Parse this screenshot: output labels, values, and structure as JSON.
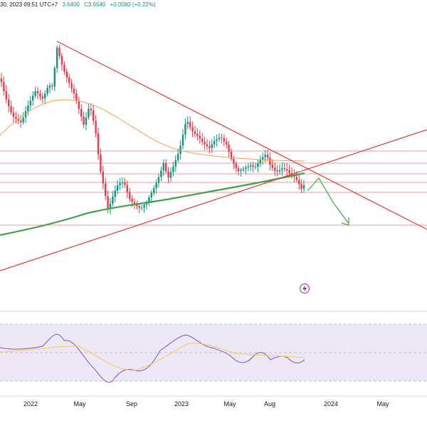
{
  "header": {
    "date_fragment": "30, 2023 09:51 UTC+7",
    "values": [
      "3.6400",
      "C3.6540",
      "+0.0080 (+0.22%)"
    ]
  },
  "colors": {
    "up": "#089981",
    "down": "#f23645",
    "ma_fast": "#f7a14a",
    "ma_slow": "#43a047",
    "trendline": "#e53935",
    "level": "#ef9a9a",
    "arrow": "#4caf50",
    "rsi": "#7e57c2",
    "rsi_ma": "#f2d04b",
    "rsi_band": "#ede7f6",
    "grid": "#d1d4dc",
    "axis_text": "#131722"
  },
  "icons": {
    "flash": "flash-icon"
  },
  "chart_data": [
    {
      "type": "candlestick",
      "title": "",
      "xlabel": "",
      "ylabel": "",
      "x_tick_labels": [
        "2022",
        "May",
        "Sep",
        "2023",
        "May",
        "Aug",
        "2024",
        "May"
      ],
      "last_close": 3.654,
      "overlays": [
        "fast moving average (orange)",
        "slow moving average (green)",
        "converging trendlines",
        "horizontal levels",
        "projected path arrow"
      ],
      "grid": false
    },
    {
      "type": "line",
      "title": "",
      "series_kind": "RSI oscillator with signal line",
      "band": [
        30,
        70
      ],
      "grid": false
    }
  ]
}
